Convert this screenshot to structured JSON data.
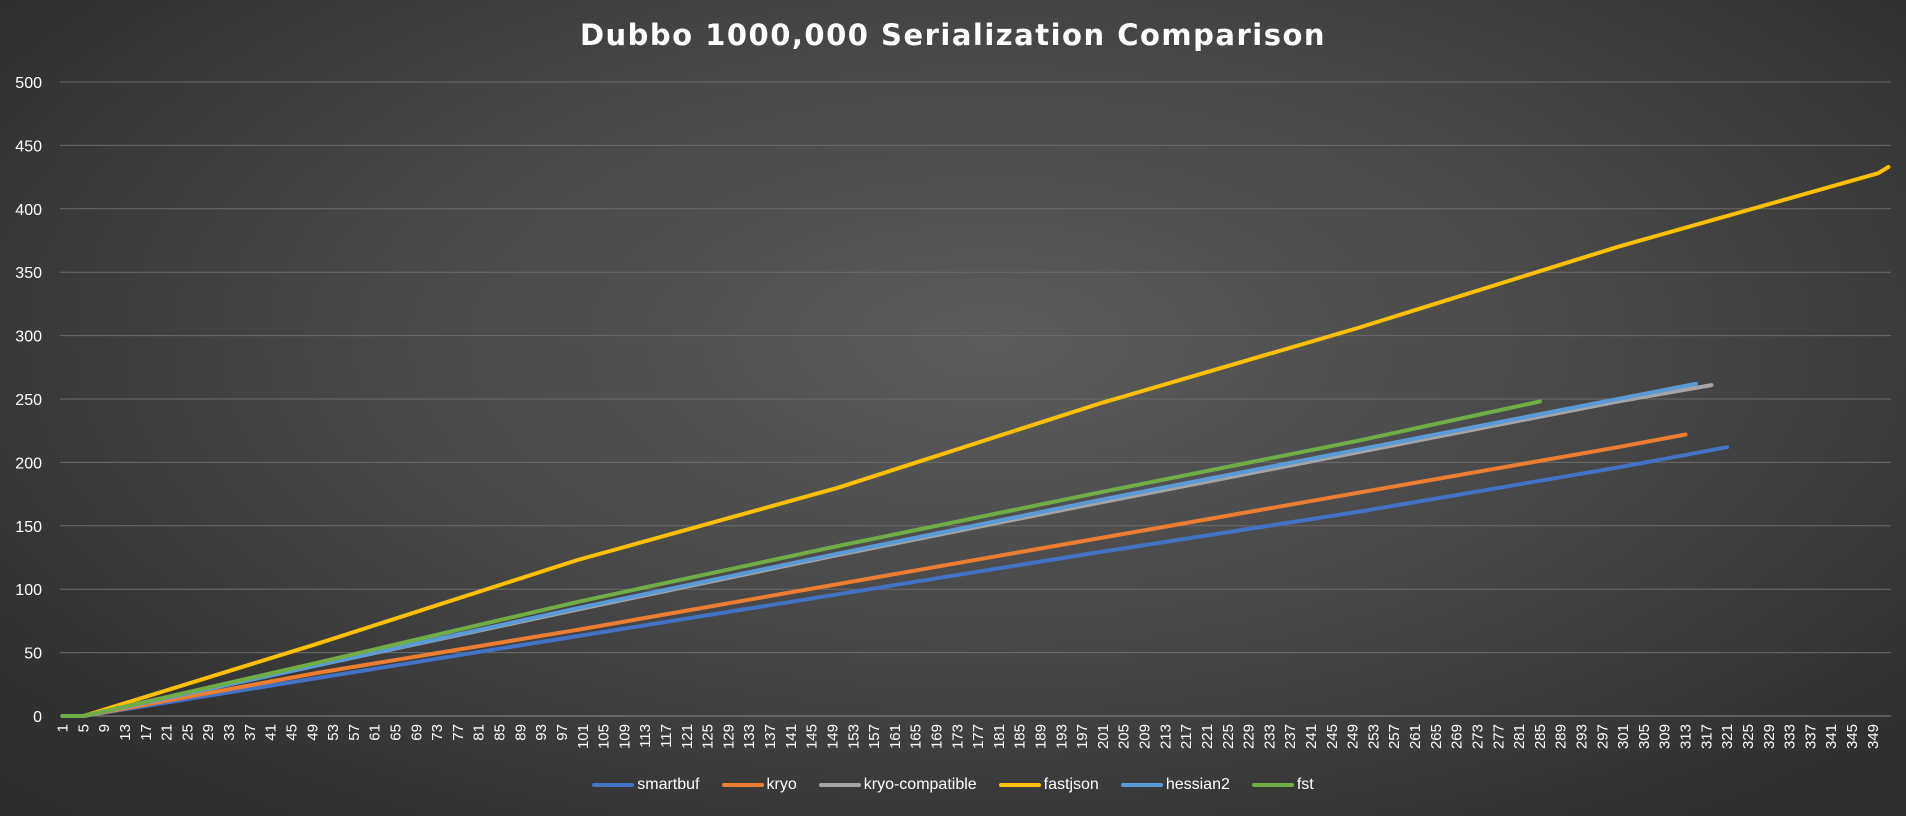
{
  "chart_data": {
    "type": "line",
    "title": "Dubbo 1000,000 Serialization Comparison",
    "xlabel": "",
    "ylabel": "",
    "ylim": [
      0,
      500
    ],
    "yticks": [
      0,
      50,
      100,
      150,
      200,
      250,
      300,
      350,
      400,
      450,
      500
    ],
    "x_category_count": 352,
    "x_tick_step": 4,
    "x_tick_labels": [
      "1",
      "5",
      "9",
      "13",
      "17",
      "21",
      "25",
      "29",
      "33",
      "37",
      "41",
      "45",
      "49",
      "53",
      "57",
      "61",
      "65",
      "69",
      "73",
      "77",
      "81",
      "85",
      "89",
      "93",
      "97",
      "101",
      "105",
      "109",
      "113",
      "117",
      "121",
      "125",
      "129",
      "133",
      "137",
      "141",
      "145",
      "149",
      "153",
      "157",
      "161",
      "165",
      "169",
      "173",
      "177",
      "181",
      "185",
      "189",
      "193",
      "197",
      "201",
      "205",
      "209",
      "213",
      "217",
      "221",
      "225",
      "229",
      "233",
      "237",
      "241",
      "245",
      "249",
      "253",
      "257",
      "261",
      "265",
      "269",
      "273",
      "277",
      "281",
      "285",
      "289",
      "293",
      "297",
      "301",
      "305",
      "309",
      "313",
      "317",
      "321",
      "325",
      "329",
      "333",
      "337",
      "341",
      "345",
      "349"
    ],
    "grid": true,
    "legend_position": "bottom",
    "series": [
      {
        "name": "smartbuf",
        "color": "#4472C4",
        "points": [
          [
            1,
            0
          ],
          [
            5,
            0
          ],
          [
            50,
            30
          ],
          [
            100,
            63
          ],
          [
            150,
            96
          ],
          [
            200,
            129
          ],
          [
            250,
            161
          ],
          [
            300,
            196
          ],
          [
            321,
            212
          ]
        ]
      },
      {
        "name": "kryo",
        "color": "#ED7D31",
        "points": [
          [
            1,
            0
          ],
          [
            5,
            0
          ],
          [
            50,
            34
          ],
          [
            100,
            68
          ],
          [
            150,
            104
          ],
          [
            200,
            140
          ],
          [
            250,
            176
          ],
          [
            300,
            212
          ],
          [
            313,
            222
          ]
        ]
      },
      {
        "name": "kryo-compatible",
        "color": "#A5A5A5",
        "points": [
          [
            1,
            0
          ],
          [
            5,
            0
          ],
          [
            50,
            40
          ],
          [
            100,
            84
          ],
          [
            150,
            127
          ],
          [
            200,
            168
          ],
          [
            250,
            208
          ],
          [
            300,
            248
          ],
          [
            318,
            261
          ]
        ]
      },
      {
        "name": "fastjson",
        "color": "#FFC000",
        "points": [
          [
            1,
            0
          ],
          [
            5,
            0
          ],
          [
            50,
            57
          ],
          [
            100,
            123
          ],
          [
            150,
            180
          ],
          [
            200,
            246
          ],
          [
            250,
            306
          ],
          [
            300,
            370
          ],
          [
            350,
            428
          ],
          [
            352,
            433
          ]
        ]
      },
      {
        "name": "hessian2",
        "color": "#5B9BD5",
        "points": [
          [
            1,
            0
          ],
          [
            5,
            0
          ],
          [
            50,
            40
          ],
          [
            100,
            85
          ],
          [
            150,
            128
          ],
          [
            200,
            170
          ],
          [
            250,
            210
          ],
          [
            300,
            250
          ],
          [
            315,
            262
          ]
        ]
      },
      {
        "name": "fst",
        "color": "#70AD47",
        "points": [
          [
            1,
            0
          ],
          [
            5,
            0
          ],
          [
            50,
            42
          ],
          [
            100,
            90
          ],
          [
            150,
            134
          ],
          [
            200,
            176
          ],
          [
            250,
            217
          ],
          [
            285,
            248
          ]
        ]
      }
    ]
  }
}
